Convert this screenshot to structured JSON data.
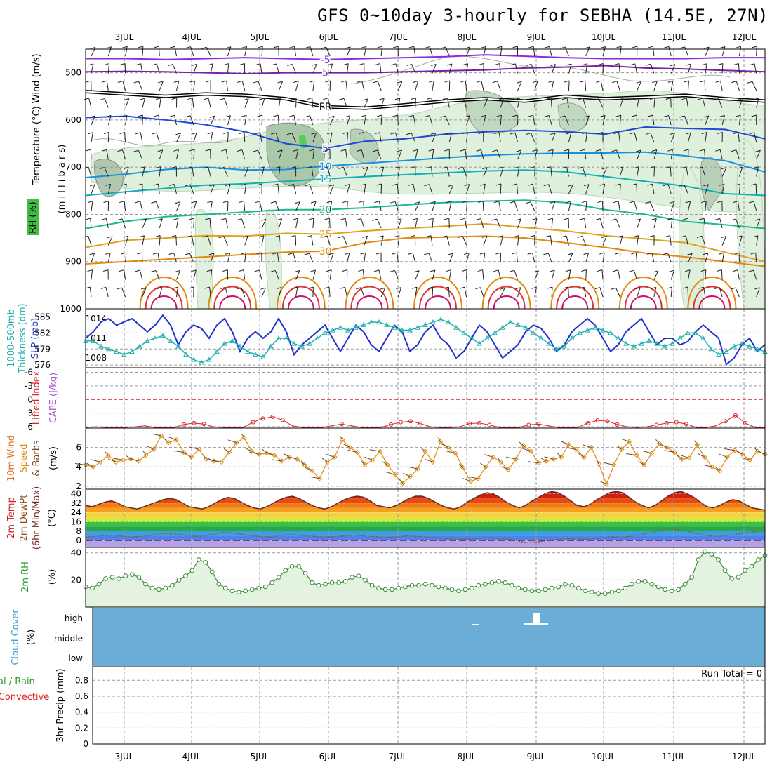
{
  "title": "GFS 0~10day 3-hourly for SEBHA (14.5E, 27N)",
  "chart_data": [
    {
      "id": "upper_air",
      "type": "contour",
      "days": [
        "3JUL",
        "4JUL",
        "5JUL",
        "6JUL",
        "7JUL",
        "8JUL",
        "9JUL",
        "10JUL",
        "11JUL",
        "12JUL"
      ],
      "ylim": [
        1000,
        450
      ],
      "yticks": [
        500,
        600,
        700,
        800,
        900,
        1000
      ],
      "ylabels": [
        {
          "text": "Wind (m/s)",
          "color": "#000000"
        },
        {
          "text": "Temperature (°C)",
          "color": "#000000"
        },
        {
          "text": "RH (%)",
          "color": "#000000"
        },
        {
          "text": "(m i l l i b a r s)",
          "color": "#000000"
        }
      ],
      "temperature_contours": [
        {
          "label": "-5",
          "color": "#8a2be2",
          "levels": [
            470,
            470,
            472,
            470,
            468,
            470,
            472,
            470,
            468,
            466,
            462,
            465,
            468,
            470,
            470,
            470,
            468,
            468
          ]
        },
        {
          "label": "5",
          "color": "#7a1fa8",
          "levels": [
            498,
            497,
            498,
            500,
            502,
            500,
            500,
            500,
            498,
            496,
            494,
            490,
            488,
            485,
            490,
            492,
            495,
            498
          ]
        },
        {
          "label": "FR",
          "color": "#000000",
          "levels": [
            540,
            545,
            550,
            545,
            548,
            555,
            572,
            575,
            568,
            560,
            555,
            560,
            550,
            555,
            552,
            548,
            555,
            560
          ]
        },
        {
          "label": "5",
          "color": "#1e48d8",
          "levels": [
            595,
            592,
            600,
            610,
            625,
            650,
            660,
            645,
            640,
            630,
            625,
            622,
            625,
            630,
            615,
            618,
            620,
            640
          ]
        },
        {
          "label": "10",
          "color": "#1890e0",
          "levels": [
            722,
            715,
            705,
            700,
            706,
            705,
            698,
            692,
            686,
            680,
            675,
            672,
            670,
            670,
            668,
            676,
            686,
            710
          ]
        },
        {
          "label": "15",
          "color": "#10b0b8",
          "levels": [
            760,
            752,
            745,
            738,
            735,
            730,
            725,
            720,
            716,
            712,
            708,
            706,
            710,
            720,
            730,
            740,
            756,
            760
          ]
        },
        {
          "label": "20",
          "color": "#18b890",
          "levels": [
            830,
            815,
            805,
            800,
            795,
            790,
            790,
            786,
            780,
            775,
            772,
            770,
            775,
            790,
            800,
            815,
            822,
            830
          ]
        },
        {
          "label": "25",
          "color": "#e0a020",
          "levels": [
            870,
            855,
            850,
            845,
            846,
            840,
            842,
            835,
            830,
            825,
            820,
            828,
            835,
            845,
            852,
            860,
            880,
            900
          ]
        },
        {
          "label": "30",
          "color": "#e08a10",
          "levels": [
            905,
            900,
            895,
            890,
            885,
            880,
            878,
            860,
            850,
            848,
            846,
            850,
            860,
            870,
            882,
            890,
            900,
            910
          ]
        }
      ],
      "contour_labels": [
        "5",
        "FR",
        "FR",
        "FR",
        "5",
        "5",
        "FR",
        "10",
        "15",
        "20",
        "25",
        "30",
        "25",
        "10",
        "15",
        "20",
        "5"
      ]
    },
    {
      "id": "slp_thickness",
      "type": "line",
      "ylabels": [
        {
          "text": "SLP (mb)",
          "color": "#2233cc"
        },
        {
          "text": "Thickness (dm)",
          "color": "#20b0b0"
        },
        {
          "text": "1000-500mb",
          "color": "#20b0b0"
        }
      ],
      "slp_ticks": [
        "1014",
        "1011",
        "1008"
      ],
      "thk_ticks": [
        "585",
        "582",
        "579",
        "576"
      ],
      "slp": [
        1011,
        1012,
        1013.5,
        1014,
        1013,
        1013.5,
        1014,
        1013,
        1012,
        1013,
        1014.5,
        1013,
        1010,
        1012,
        1013,
        1012.5,
        1011,
        1013,
        1014,
        1012,
        1009,
        1011,
        1012,
        1011,
        1012,
        1014,
        1012,
        1008.5,
        1010,
        1011,
        1012,
        1013,
        1011,
        1009,
        1011,
        1013,
        1012,
        1010,
        1009,
        1011,
        1013,
        1012,
        1009,
        1010,
        1012,
        1013,
        1011,
        1010,
        1008,
        1009,
        1011,
        1013,
        1012,
        1010,
        1008,
        1009,
        1010,
        1012,
        1013,
        1012.5,
        1011,
        1009,
        1010,
        1012,
        1013,
        1014,
        1013,
        1011,
        1009,
        1010,
        1012,
        1013,
        1014,
        1012,
        1010,
        1011,
        1011,
        1010,
        1010.5,
        1012,
        1013,
        1012,
        1011,
        1007,
        1008,
        1010,
        1011,
        1009,
        1010
      ],
      "thickness": [
        580.5,
        580.5,
        579.5,
        579,
        578.5,
        578,
        578.5,
        579.5,
        580.5,
        581,
        581.5,
        580.5,
        579.5,
        578,
        577,
        576.5,
        577,
        578.5,
        580,
        580.5,
        579.5,
        578.5,
        578,
        577.5,
        579.5,
        581,
        581,
        580,
        579.5,
        580,
        581,
        582,
        582.5,
        583,
        582.5,
        583,
        583.5,
        584,
        584,
        583.5,
        583,
        582.5,
        582.5,
        583,
        583.5,
        584,
        584.5,
        584,
        583,
        582,
        581,
        580,
        581,
        582,
        583,
        584,
        583.5,
        583,
        582,
        581,
        580,
        579,
        579.5,
        581,
        582,
        582.5,
        583,
        582.5,
        582,
        581,
        580,
        579.5,
        580,
        580.5,
        580,
        579.5,
        580,
        581,
        582,
        582,
        581,
        579,
        578,
        578.5,
        579.5,
        580,
        579.5,
        579,
        578.5
      ]
    },
    {
      "id": "cape_li",
      "type": "line",
      "ylabels": [
        {
          "text": "CAPE (J/kg)",
          "color": "#aa55cc"
        },
        {
          "text": "Lifted Index",
          "color": "#dd2222"
        }
      ],
      "li_ticks": [
        "-6",
        "-3",
        "0",
        "3",
        "6"
      ],
      "li_zero_line": 0,
      "lifted_index": [
        6.3,
        6,
        6.2,
        6.5,
        6.2,
        6,
        5.8,
        6.2,
        6.5,
        6.2,
        5.5,
        5.2,
        5.4,
        6,
        6.3,
        6.5,
        6.2,
        5,
        4.2,
        3.8,
        4.5,
        5.8,
        6.2,
        6.5,
        6.4,
        5.8,
        5.4,
        5.8,
        6.2,
        6.5,
        6.2,
        5.5,
        5,
        4.8,
        5.3,
        6,
        6.3,
        6.5,
        6,
        5.3,
        5.2,
        5.6,
        6.2,
        6.5,
        6.3,
        5.6,
        5.4,
        5.8,
        6.2,
        6.5,
        6.2,
        5.2,
        4.6,
        4.8,
        5.5,
        6,
        6.3,
        6,
        5.6,
        5.2,
        5,
        5.4,
        6.2,
        6.5,
        5.8,
        4.8,
        3.5,
        5.2,
        6.3,
        6.5
      ]
    },
    {
      "id": "wind10m",
      "type": "line",
      "ylabels": [
        {
          "text": "10m Wind",
          "color": "#e07020"
        },
        {
          "text": "Speed",
          "color": "#e08a10"
        },
        {
          "text": "& Barbs",
          "color": "#7a4a20"
        },
        {
          "text": "(m/s)",
          "color": "#000000"
        }
      ],
      "ticks": [
        "6",
        "4",
        "2"
      ],
      "speed": [
        4.2,
        4.0,
        4.5,
        5.2,
        4.5,
        4.7,
        4.8,
        4.6,
        5.2,
        5.8,
        7.2,
        6.5,
        6.8,
        5.5,
        5.0,
        5.8,
        4.8,
        4.6,
        4.5,
        5.5,
        6.5,
        7.0,
        5.6,
        5.3,
        5.4,
        5.2,
        4.6,
        5.0,
        4.8,
        4.2,
        3.6,
        2.8,
        4.5,
        5.0,
        6.8,
        6.0,
        5.5,
        4.2,
        4.7,
        5.6,
        4.2,
        3.2,
        2.3,
        3.0,
        3.8,
        5.6,
        4.5,
        6.6,
        6.0,
        5.4,
        3.9,
        2.5,
        2.8,
        4.0,
        5.0,
        4.5,
        3.7,
        4.8,
        6.2,
        5.6,
        4.4,
        4.6,
        4.8,
        5.0,
        6.3,
        5.8,
        5.0,
        6.0,
        4.3,
        2.2,
        4.2,
        5.8,
        6.6,
        5.2,
        4.2,
        5.4,
        6.4,
        6.0,
        5.5,
        4.8,
        4.9,
        6.3,
        5.0,
        4.0,
        3.6,
        5.0,
        5.7,
        5.3,
        4.7,
        5.6,
        5.3
      ]
    },
    {
      "id": "temp2m",
      "type": "area",
      "ylabels": [
        {
          "text": "2m Temp",
          "color": "#cc2222"
        },
        {
          "text": "2m DewPt",
          "color": "#8a4a1a"
        },
        {
          "text": "(6hr Min/Max)",
          "color": "#7a2a2a"
        },
        {
          "text": "(°C)",
          "color": "#000000"
        }
      ],
      "ticks": [
        "40",
        "32",
        "24",
        "16",
        "8",
        "0"
      ],
      "temperature": [
        30,
        29,
        31,
        33,
        34,
        32,
        29,
        28,
        27,
        29,
        31,
        33,
        35,
        36,
        35,
        32,
        29,
        28,
        27,
        29,
        32,
        35,
        37,
        36,
        33,
        30,
        28,
        27,
        29,
        32,
        35,
        37,
        38,
        36,
        33,
        30,
        28,
        27,
        29,
        32,
        35,
        37,
        38,
        37,
        34,
        30,
        29,
        28,
        30,
        33,
        36,
        38,
        38,
        36,
        33,
        30,
        28,
        27,
        29,
        33,
        36,
        39,
        41,
        40,
        37,
        33,
        30,
        28,
        30,
        34,
        37,
        40,
        42,
        41,
        38,
        34,
        30,
        29,
        31,
        35,
        38,
        41,
        42,
        41,
        37,
        33,
        30,
        28,
        30,
        34,
        38,
        41,
        42,
        40,
        37,
        33,
        29,
        28,
        30,
        33,
        35,
        34,
        31,
        28,
        27,
        26
      ],
      "dewpoint": [
        3,
        3.5,
        4,
        4.5,
        4,
        3.5,
        3,
        3.5,
        4,
        5,
        6,
        5.5,
        5,
        4,
        3.5,
        4,
        5,
        6.5,
        7,
        6,
        5,
        4,
        3.5,
        3,
        3.5,
        4.5,
        5,
        4.5,
        4,
        3.5,
        3,
        3,
        3.5,
        4,
        4.5,
        4,
        3.5,
        3,
        2.5,
        2.8,
        3.5,
        4,
        3.5,
        3,
        2.5,
        2,
        1.5,
        1.2,
        1,
        1.5,
        2,
        2.5,
        2,
        1.5,
        0.5,
        -1,
        -2,
        -1.5,
        -0.5,
        0.5,
        1,
        1.5,
        1,
        1,
        1.5,
        2,
        2.5,
        3,
        2.5,
        3.5,
        4.5,
        6,
        7.5,
        9,
        10,
        9,
        8,
        6.5,
        5,
        4,
        3.5,
        4,
        5,
        6,
        7,
        7.5,
        8
      ]
    },
    {
      "id": "rh2m",
      "type": "area",
      "ylabels": [
        {
          "text": "2m RH",
          "color": "#2a9a2a"
        },
        {
          "text": "(%)",
          "color": "#000000"
        }
      ],
      "ticks": [
        "40",
        "20"
      ],
      "rh": [
        15,
        14,
        17,
        21,
        22,
        21,
        23,
        24,
        22,
        17,
        14,
        13,
        14,
        16,
        20,
        23,
        27,
        35,
        33,
        26,
        17,
        14,
        12,
        11,
        12,
        13,
        14,
        15,
        18,
        22,
        27,
        30,
        30,
        25,
        18,
        16,
        17,
        18,
        18,
        19,
        22,
        23,
        20,
        16,
        14,
        13,
        13,
        14,
        15,
        16,
        16,
        17,
        16,
        15,
        14,
        13,
        12,
        13,
        14,
        16,
        17,
        18,
        19,
        18,
        16,
        14,
        13,
        12,
        12,
        13,
        14,
        15,
        17,
        16,
        14,
        12,
        11,
        10,
        10,
        11,
        12,
        14,
        17,
        19,
        19,
        17,
        15,
        13,
        12,
        13,
        17,
        22,
        35,
        41,
        39,
        35,
        27,
        21,
        22,
        27,
        30,
        35,
        38
      ]
    },
    {
      "id": "cloud",
      "type": "heatmap",
      "ylabels": [
        {
          "text": "Cloud Cover",
          "color": "#3a9ed0"
        },
        {
          "text": "(%)",
          "color": "#000000"
        }
      ],
      "categories": [
        "high",
        "middle",
        "low"
      ]
    },
    {
      "id": "precip",
      "type": "bar",
      "ylabels": [
        {
          "text": "Total / Rain",
          "color": "#2a9a2a"
        },
        {
          "text": "Convective",
          "color": "#dd2222"
        },
        {
          "text": "3hr Precip (mm)",
          "color": "#000000"
        }
      ],
      "ticks": [
        "0.8",
        "0.6",
        "0.4",
        "0.2",
        "0"
      ],
      "run_total": "Run Total = 0",
      "values": []
    }
  ]
}
